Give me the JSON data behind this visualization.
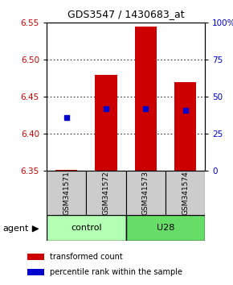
{
  "title": "GDS3547 / 1430683_at",
  "samples": [
    "GSM341571",
    "GSM341572",
    "GSM341573",
    "GSM341574"
  ],
  "group_labels": [
    "control",
    "U28"
  ],
  "bar_tops": [
    6.352,
    6.48,
    6.545,
    6.47
  ],
  "bar_bottom": 6.35,
  "blue_y": [
    6.422,
    6.434,
    6.434,
    6.432
  ],
  "ylim": [
    6.35,
    6.55
  ],
  "yticks_left": [
    6.35,
    6.4,
    6.45,
    6.5,
    6.55
  ],
  "yticks_right": [
    0,
    25,
    50,
    75,
    100
  ],
  "bar_color": "#cc0000",
  "blue_color": "#0000cc",
  "control_color": "#b3ffb3",
  "u28_color": "#66dd66",
  "group_box_color": "#cccccc",
  "legend_red_label": "transformed count",
  "legend_blue_label": "percentile rank within the sample",
  "agent_label": "agent",
  "left_label_color": "#cc0000",
  "right_label_color": "#0000cc",
  "figsize": [
    2.9,
    3.54
  ],
  "dpi": 100
}
